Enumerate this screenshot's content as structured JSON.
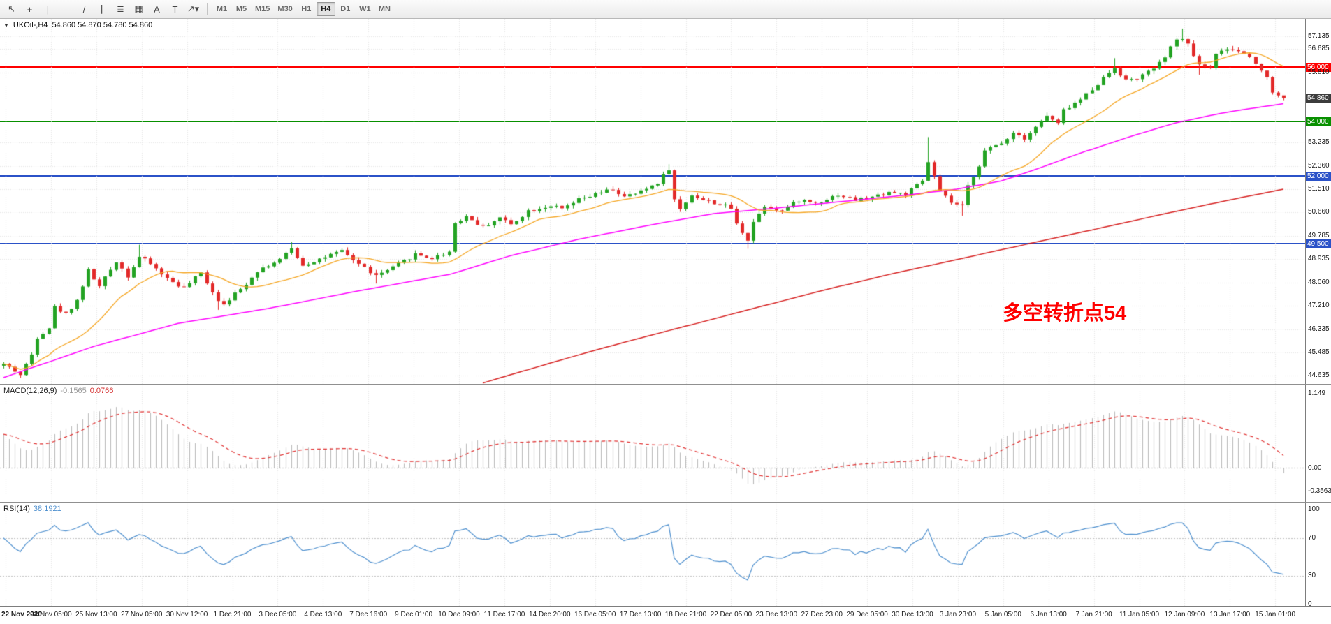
{
  "toolbar": {
    "tools": [
      {
        "name": "cursor-tool",
        "glyph": "↖"
      },
      {
        "name": "crosshair-tool",
        "glyph": "+"
      },
      {
        "name": "vertical-line-tool",
        "glyph": "|"
      },
      {
        "name": "horizontal-line-tool",
        "glyph": "—"
      },
      {
        "name": "trendline-tool",
        "glyph": "/"
      },
      {
        "name": "equidistant-channel-tool",
        "glyph": "∥"
      },
      {
        "name": "fibonacci-retracement-tool",
        "glyph": "≣"
      },
      {
        "name": "cycle-lines-tool",
        "glyph": "▦"
      },
      {
        "name": "text-tool",
        "glyph": "A"
      },
      {
        "name": "text-label-tool",
        "glyph": "T"
      },
      {
        "name": "arrows-tool",
        "glyph": "↗▾"
      }
    ],
    "timeframes": [
      {
        "label": "M1",
        "active": false
      },
      {
        "label": "M5",
        "active": false
      },
      {
        "label": "M15",
        "active": false
      },
      {
        "label": "M30",
        "active": false
      },
      {
        "label": "H1",
        "active": false
      },
      {
        "label": "H4",
        "active": true
      },
      {
        "label": "D1",
        "active": false
      },
      {
        "label": "W1",
        "active": false
      },
      {
        "label": "MN",
        "active": false
      }
    ]
  },
  "chart": {
    "title": "UKOil-,H4",
    "ohlc": "54.860 54.870 54.780 54.860",
    "annotation": "多空转折点54",
    "annotation_color": "#ff0000"
  },
  "macd": {
    "name": "MACD(12,26,9)",
    "value_main": "-0.1565",
    "value_signal": "0.0766",
    "axis": [
      {
        "v": 1.149,
        "label": "1.149"
      },
      {
        "v": 0,
        "label": "0.00"
      },
      {
        "v": -0.3563,
        "label": "-0.3563"
      }
    ]
  },
  "rsi": {
    "name": "RSI(14)",
    "value": "38.1921",
    "axis": [
      {
        "v": 100,
        "label": "100"
      },
      {
        "v": 70,
        "label": "70"
      },
      {
        "v": 30,
        "label": "30"
      },
      {
        "v": 0,
        "label": "0"
      }
    ]
  },
  "chart_data": {
    "type": "candlestick",
    "symbol": "UKOil-",
    "timeframe": "H4",
    "bars": 228,
    "price_range": [
      44.32,
      57.78
    ],
    "last_bar": {
      "o": 54.86,
      "h": 54.87,
      "l": 54.78,
      "c": 54.86
    },
    "levels": [
      {
        "price": 56.0,
        "label": "56.000",
        "color": "#ff0000",
        "badge": "#ff0000",
        "width": 2
      },
      {
        "price": 54.86,
        "label": "54.860",
        "color": "#8ea4b8",
        "badge": "#3c3c3c",
        "width": 1
      },
      {
        "price": 54.0,
        "label": "54.000",
        "color": "#089000",
        "badge": "#089000",
        "width": 2
      },
      {
        "price": 52.0,
        "label": "52.000",
        "color": "#2b52c8",
        "badge": "#2b52c8",
        "width": 2
      },
      {
        "price": 49.5,
        "label": "49.500",
        "color": "#2b52c8",
        "badge": "#2b52c8",
        "width": 2
      }
    ],
    "price_ticks": [
      {
        "v": 57.135,
        "label": "57.135"
      },
      {
        "v": 56.685,
        "label": "56.685"
      },
      {
        "v": 55.81,
        "label": "55.810"
      },
      {
        "v": 53.235,
        "label": "53.235"
      },
      {
        "v": 52.36,
        "label": "52.360"
      },
      {
        "v": 51.51,
        "label": "51.510"
      },
      {
        "v": 50.66,
        "label": "50.660"
      },
      {
        "v": 49.785,
        "label": "49.785"
      },
      {
        "v": 48.935,
        "label": "48.935"
      },
      {
        "v": 48.06,
        "label": "48.060"
      },
      {
        "v": 47.21,
        "label": "47.210"
      },
      {
        "v": 46.335,
        "label": "46.335"
      },
      {
        "v": 45.485,
        "label": "45.485"
      },
      {
        "v": 44.635,
        "label": "44.635"
      }
    ],
    "time_labels": [
      "22 Nov 2020",
      "24 Nov 05:00",
      "25 Nov 13:00",
      "27 Nov 05:00",
      "30 Nov 12:00",
      "1 Dec 21:00",
      "3 Dec 05:00",
      "4 Dec 13:00",
      "7 Dec 16:00",
      "9 Dec 01:00",
      "10 Dec 09:00",
      "11 Dec 17:00",
      "14 Dec 20:00",
      "16 Dec 05:00",
      "17 Dec 13:00",
      "18 Dec 21:00",
      "22 Dec 05:00",
      "23 Dec 13:00",
      "27 Dec 23:00",
      "29 Dec 05:00",
      "30 Dec 13:00",
      "3 Jan 23:00",
      "5 Jan 05:00",
      "6 Jan 13:00",
      "7 Jan 21:00",
      "11 Jan 05:00",
      "12 Jan 09:00",
      "13 Jan 17:00",
      "15 Jan 01:00"
    ],
    "close_anchors": [
      [
        0,
        45.05
      ],
      [
        2,
        44.8
      ],
      [
        3,
        44.65
      ],
      [
        5,
        45.4
      ],
      [
        6,
        46.05
      ],
      [
        8,
        46.4
      ],
      [
        9,
        47.15
      ],
      [
        11,
        46.9
      ],
      [
        13,
        47.4
      ],
      [
        15,
        48.5
      ],
      [
        17,
        47.9
      ],
      [
        20,
        48.85
      ],
      [
        22,
        48.3
      ],
      [
        24,
        49.0
      ],
      [
        26,
        48.75
      ],
      [
        29,
        48.2
      ],
      [
        32,
        47.85
      ],
      [
        35,
        48.4
      ],
      [
        38,
        47.4
      ],
      [
        39,
        47.3
      ],
      [
        42,
        47.8
      ],
      [
        45,
        48.5
      ],
      [
        49,
        48.9
      ],
      [
        51,
        49.3
      ],
      [
        53,
        48.7
      ],
      [
        57,
        49.0
      ],
      [
        60,
        49.2
      ],
      [
        63,
        48.75
      ],
      [
        66,
        48.3
      ],
      [
        69,
        48.6
      ],
      [
        73,
        49.1
      ],
      [
        76,
        48.95
      ],
      [
        79,
        49.2
      ],
      [
        80,
        50.25
      ],
      [
        82,
        50.5
      ],
      [
        85,
        50.1
      ],
      [
        88,
        50.45
      ],
      [
        90,
        50.2
      ],
      [
        93,
        50.7
      ],
      [
        97,
        50.9
      ],
      [
        99,
        50.75
      ],
      [
        102,
        51.1
      ],
      [
        105,
        51.3
      ],
      [
        108,
        51.5
      ],
      [
        110,
        51.2
      ],
      [
        113,
        51.4
      ],
      [
        116,
        51.75
      ],
      [
        118,
        52.25
      ],
      [
        119,
        51.1
      ],
      [
        120,
        50.75
      ],
      [
        122,
        51.3
      ],
      [
        124,
        51.1
      ],
      [
        126,
        51.0
      ],
      [
        129,
        50.8
      ],
      [
        130,
        50.2
      ],
      [
        132,
        49.65
      ],
      [
        133,
        50.3
      ],
      [
        135,
        50.9
      ],
      [
        138,
        50.7
      ],
      [
        141,
        51.1
      ],
      [
        144,
        51.0
      ],
      [
        148,
        51.3
      ],
      [
        151,
        51.1
      ],
      [
        154,
        51.2
      ],
      [
        157,
        51.4
      ],
      [
        160,
        51.3
      ],
      [
        163,
        51.8
      ],
      [
        164,
        52.5
      ],
      [
        166,
        51.4
      ],
      [
        168,
        51.0
      ],
      [
        170,
        50.85
      ],
      [
        171,
        51.6
      ],
      [
        173,
        52.4
      ],
      [
        174,
        52.9
      ],
      [
        177,
        53.2
      ],
      [
        179,
        53.6
      ],
      [
        181,
        53.4
      ],
      [
        183,
        53.8
      ],
      [
        185,
        54.2
      ],
      [
        187,
        53.9
      ],
      [
        188,
        54.4
      ],
      [
        191,
        54.8
      ],
      [
        193,
        55.2
      ],
      [
        196,
        55.8
      ],
      [
        197,
        56.0
      ],
      [
        199,
        55.5
      ],
      [
        201,
        55.6
      ],
      [
        203,
        55.8
      ],
      [
        206,
        56.3
      ],
      [
        207,
        56.8
      ],
      [
        209,
        57.1
      ],
      [
        210,
        56.8
      ],
      [
        212,
        56.1
      ],
      [
        214,
        56.0
      ],
      [
        215,
        56.5
      ],
      [
        218,
        56.65
      ],
      [
        220,
        56.5
      ],
      [
        222,
        56.2
      ],
      [
        224,
        55.6
      ],
      [
        225,
        55.1
      ],
      [
        227,
        54.86
      ]
    ],
    "spike_highs": {
      "24": 49.45,
      "51": 49.55,
      "118": 52.42,
      "164": 53.42,
      "197": 56.33,
      "209": 57.42,
      "218": 56.78
    },
    "spike_lows": {
      "3": 44.55,
      "38": 47.05,
      "66": 48.02,
      "132": 49.3,
      "170": 50.52,
      "212": 55.72
    },
    "moving_averages": [
      {
        "name": "fast-ma",
        "type": "sma",
        "period": 16,
        "color": "#f5a623"
      },
      {
        "name": "mid-ma",
        "color": "#ff00ff",
        "anchors": [
          [
            0,
            44.55
          ],
          [
            16,
            45.7
          ],
          [
            31,
            46.55
          ],
          [
            47,
            47.1
          ],
          [
            63,
            47.75
          ],
          [
            79,
            48.35
          ],
          [
            90,
            49.05
          ],
          [
            102,
            49.65
          ],
          [
            114,
            50.15
          ],
          [
            126,
            50.6
          ],
          [
            137,
            50.8
          ],
          [
            149,
            51.05
          ],
          [
            161,
            51.3
          ],
          [
            169,
            51.5
          ],
          [
            177,
            51.8
          ],
          [
            184,
            52.3
          ],
          [
            192,
            52.9
          ],
          [
            200,
            53.45
          ],
          [
            208,
            53.95
          ],
          [
            216,
            54.3
          ],
          [
            222,
            54.5
          ],
          [
            227,
            54.65
          ]
        ]
      },
      {
        "name": "slow-ma",
        "color": "#d62020",
        "anchors": [
          [
            85,
            44.35
          ],
          [
            98,
            45.15
          ],
          [
            110,
            45.85
          ],
          [
            122,
            46.5
          ],
          [
            133,
            47.1
          ],
          [
            145,
            47.75
          ],
          [
            157,
            48.35
          ],
          [
            169,
            48.9
          ],
          [
            181,
            49.45
          ],
          [
            192,
            49.95
          ],
          [
            204,
            50.5
          ],
          [
            214,
            50.95
          ],
          [
            221,
            51.25
          ],
          [
            227,
            51.5
          ]
        ]
      }
    ],
    "macd_params": [
      12,
      26,
      9
    ],
    "macd_axis_range": [
      -0.53,
      1.28
    ],
    "rsi_period": 14,
    "candle_up_color": "#23a323",
    "candle_down_color": "#e22929",
    "macd_hist_color": "#b8b8b8",
    "macd_signal_color": "#e03030",
    "rsi_line_color": "#4d8fce"
  }
}
